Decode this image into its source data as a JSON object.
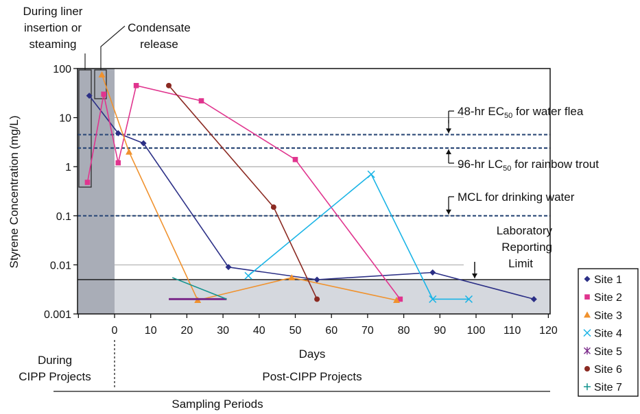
{
  "chart_data": {
    "type": "line",
    "xlabel": "Days",
    "ylabel": "Styrene Concentration (mg/L)",
    "xlim": [
      -10,
      120
    ],
    "ylim": [
      0.001,
      100
    ],
    "yscale": "log",
    "x_ticks": [
      "0",
      "10",
      "20",
      "30",
      "40",
      "50",
      "60",
      "70",
      "80",
      "90",
      "100",
      "110",
      "120"
    ],
    "y_ticks": [
      {
        "value": 100,
        "label": "100"
      },
      {
        "value": 10,
        "label": "10"
      },
      {
        "value": 1,
        "label": "1"
      },
      {
        "value": 0.1,
        "label": "0.1"
      },
      {
        "value": 0.01,
        "label": "0.01"
      },
      {
        "value": 0.001,
        "label": "0.001"
      }
    ],
    "grid": true,
    "legend_position": "right",
    "shaded_regions": [
      {
        "x": [
          -10,
          0
        ],
        "label": "During CIPP Projects"
      },
      {
        "below_y": 0.005,
        "label": "Laboratory Reporting Limit"
      }
    ],
    "reference_lines": [
      {
        "y": 4.5,
        "label_main": "48-hr EC",
        "label_sub": "50",
        "label_rest": " for water flea"
      },
      {
        "y": 2.4,
        "label_main": "96-hr LC",
        "label_sub": "50",
        "label_rest": " for rainbow trout"
      },
      {
        "y": 0.1,
        "label_main": "MCL for drinking water",
        "label_sub": "",
        "label_rest": ""
      }
    ],
    "annotations": {
      "liner": [
        "During liner",
        "insertion or",
        "steaming"
      ],
      "condensate": [
        "Condensate",
        "release"
      ],
      "lab_limit": [
        "Laboratory",
        "Reporting",
        "Limit"
      ]
    },
    "periods": {
      "during": [
        "During",
        "CIPP Projects"
      ],
      "post": "Post-CIPP Projects",
      "axis_label": "Sampling Periods"
    },
    "series": [
      {
        "name": "Site 1",
        "color": "#2b2f86",
        "marker": "diamond",
        "x": [
          -7,
          1,
          8,
          31.5,
          56,
          88,
          116
        ],
        "y": [
          28,
          4.8,
          3,
          0.009,
          0.005,
          0.007,
          0.002
        ]
      },
      {
        "name": "Site 2",
        "color": "#e0348e",
        "marker": "square",
        "x": [
          -7.5,
          -3,
          1,
          6,
          24,
          50,
          79
        ],
        "y": [
          0.48,
          30,
          1.2,
          45,
          22,
          1.4,
          0.002
        ]
      },
      {
        "name": "Site 3",
        "color": "#f0922e",
        "marker": "triangle",
        "x": [
          -3.5,
          4,
          23,
          49,
          78
        ],
        "y": [
          75,
          2,
          0.0019,
          0.0055,
          0.0019
        ]
      },
      {
        "name": "Site 4",
        "color": "#1ab4e6",
        "marker": "x",
        "x": [
          37,
          71,
          88,
          98
        ],
        "y": [
          0.006,
          0.7,
          0.002,
          0.002
        ]
      },
      {
        "name": "Site 5",
        "color": "#7a2a8a",
        "marker": "star",
        "x": [
          15,
          31
        ],
        "y": [
          0.002,
          0.002
        ]
      },
      {
        "name": "Site 6",
        "color": "#8b2a22",
        "marker": "circle",
        "x": [
          15,
          44,
          56
        ],
        "y": [
          45,
          0.15,
          0.002
        ]
      },
      {
        "name": "Site 7",
        "color": "#13938e",
        "marker": "plus",
        "x": [
          16,
          31
        ],
        "y": [
          0.0055,
          0.002
        ]
      }
    ]
  }
}
